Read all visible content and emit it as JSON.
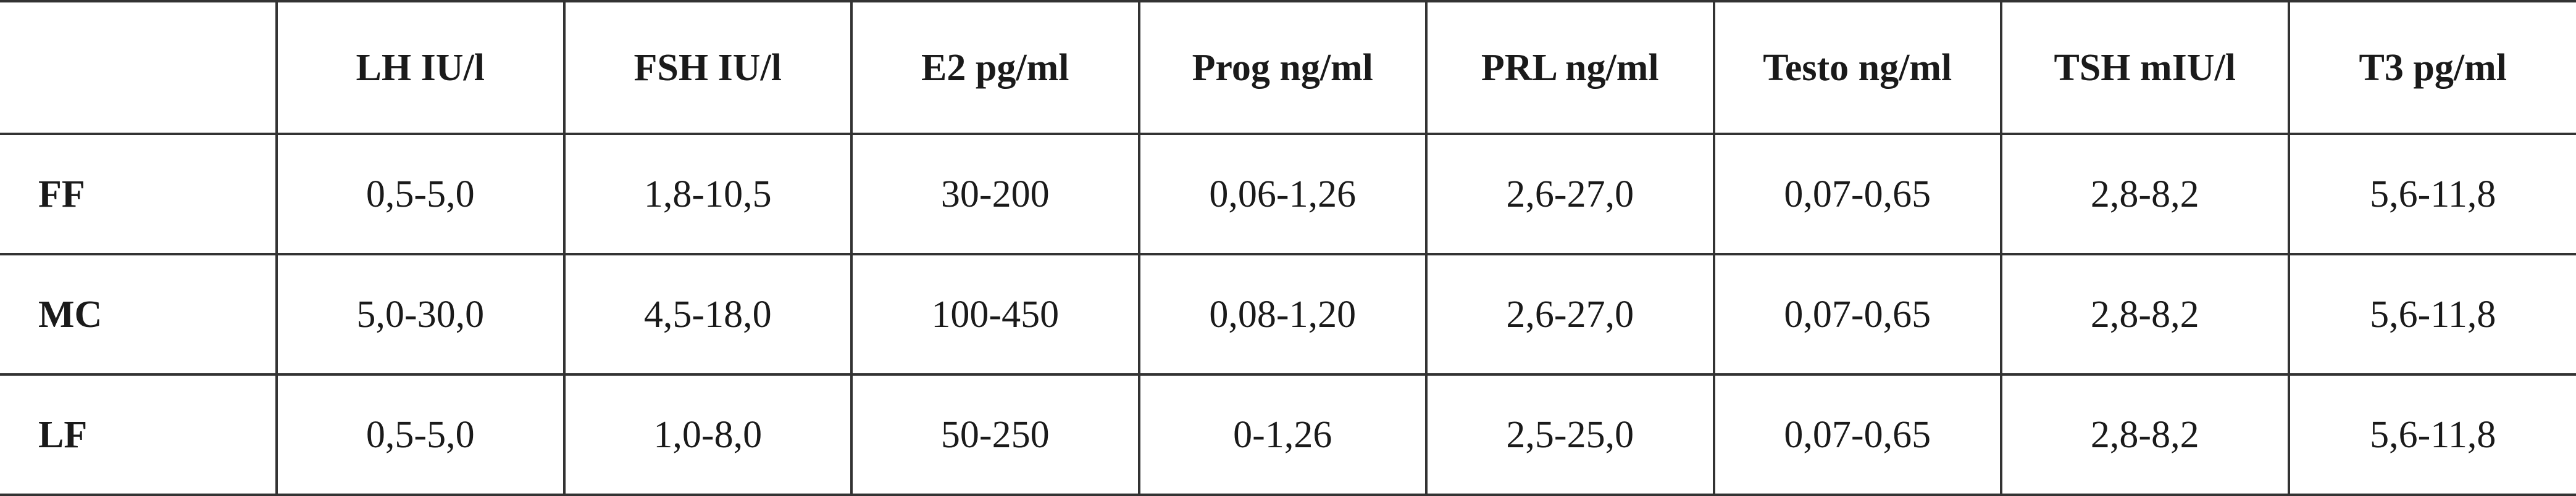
{
  "table": {
    "corner": "",
    "columns": [
      "LH IU/l",
      "FSH IU/l",
      "E2 pg/ml",
      "Prog ng/ml",
      "PRL ng/ml",
      "Testo ng/ml",
      "TSH mIU/l",
      "T3 pg/ml"
    ],
    "rows": [
      {
        "label": "FF",
        "cells": [
          "0,5-5,0",
          "1,8-10,5",
          "30-200",
          "0,06-1,26",
          "2,6-27,0",
          "0,07-0,65",
          "2,8-8,2",
          "5,6-11,8"
        ]
      },
      {
        "label": "MC",
        "cells": [
          "5,0-30,0",
          "4,5-18,0",
          "100-450",
          "0,08-1,20",
          "2,6-27,0",
          "0,07-0,65",
          "2,8-8,2",
          "5,6-11,8"
        ]
      },
      {
        "label": "LF",
        "cells": [
          "0,5-5,0",
          "1,0-8,0",
          "50-250",
          "0-1,26",
          "2,5-25,0",
          "0,07-0,65",
          "2,8-8,2",
          "5,6-11,8"
        ]
      }
    ]
  }
}
